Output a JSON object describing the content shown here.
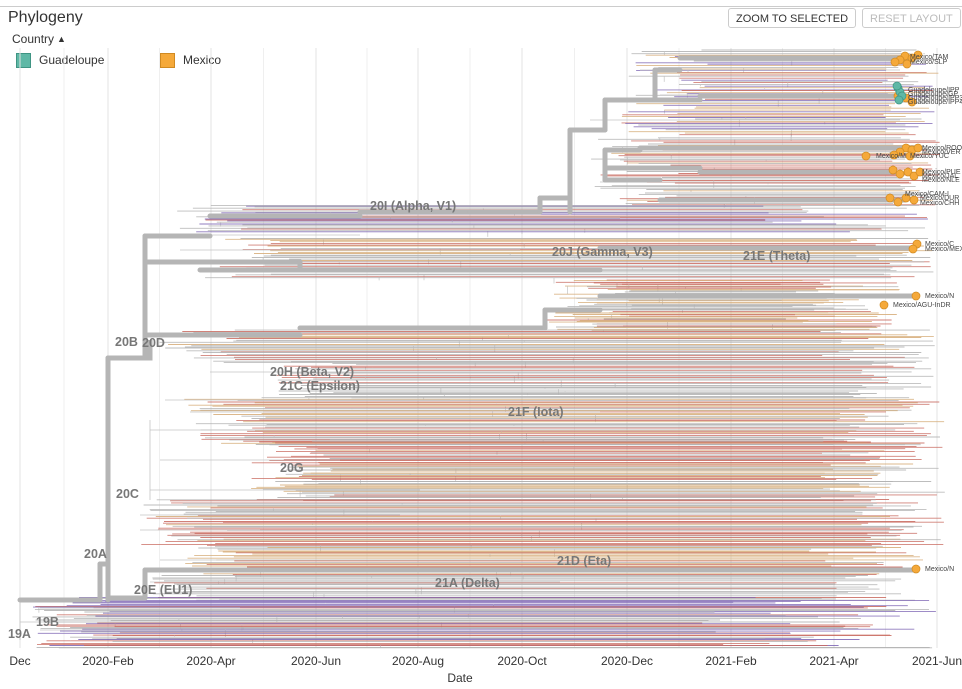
{
  "panel": {
    "title": "Phylogeny",
    "zoom_button": "ZOOM TO SELECTED",
    "reset_button": "RESET LAYOUT"
  },
  "legend": {
    "title": "Country",
    "items": [
      {
        "label": "Guadeloupe",
        "color": "#5FB8A6"
      },
      {
        "label": "Mexico",
        "color": "#F5A93A"
      }
    ]
  },
  "axis": {
    "title": "Date",
    "ticks": [
      "Dec",
      "2020-Feb",
      "2020-Apr",
      "2020-Jun",
      "2020-Aug",
      "2020-Oct",
      "2020-Dec",
      "2021-Feb",
      "2021-Apr",
      "2021-Jun"
    ]
  },
  "clades": [
    "20I (Alpha, V1)",
    "20J (Gamma, V3)",
    "21E (Theta)",
    "20B",
    "20D",
    "20H (Beta, V2)",
    "21C (Epsilon)",
    "21F (Iota)",
    "20G",
    "20C",
    "20A",
    "21D (Eta)",
    "21A (Delta)",
    "20E (EU1)",
    "19B",
    "19A"
  ],
  "tip_labels": [
    "Mexico/TAM",
    "Mexico/SLP",
    "Mexico/CAM-I",
    "Mexico/AGU-InDR",
    "Mexico/N",
    "Mexico/CMX",
    "Mexico/ROO",
    "Mexico/VER",
    "Mexico/YUC",
    "Mexico/PUE",
    "Mexico/JAL",
    "Mexico/NLE",
    "Mexico/DUR",
    "Mexico/CHH",
    "Mexico/M",
    "Mexico/C",
    "Mexico/MEX",
    "Guadeloupe/IPP",
    "Guadeloupe/GP",
    "Guadeloupe/IPP3",
    "Guadeloupe/IPP4"
  ],
  "colors": {
    "branch_main": "#b5b5b5",
    "branch_thin": "#c4c4c4",
    "grid": "#e3e3e3",
    "guadeloupe": "#5FB8A6",
    "mexico": "#F5A93A",
    "tip_red": "#c96b60",
    "tip_tan": "#d6ab78",
    "tip_purple": "#7d65b4",
    "tip_grey": "#b2b2b2"
  }
}
